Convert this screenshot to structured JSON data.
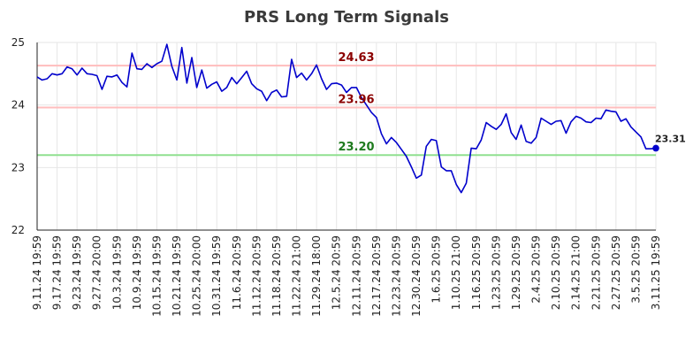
{
  "chart_data": {
    "type": "line",
    "title": "PRS Long Term Signals",
    "xlabel": "",
    "ylabel": "",
    "ylim": [
      22,
      25
    ],
    "yticks": [
      "22",
      "23",
      "24",
      "25"
    ],
    "grid": true,
    "x_tick_labels": [
      "9.11.24 19:59",
      "9.17.24 19:59",
      "9.23.24 19:59",
      "9.27.24 20:00",
      "10.3.24 19:59",
      "10.9.24 19:59",
      "10.15.24 19:59",
      "10.21.24 19:59",
      "10.25.24 20:00",
      "10.31.24 19:59",
      "11.6.24 20:59",
      "11.12.24 20:59",
      "11.18.24 20:59",
      "11.22.24 21:00",
      "11.29.24 18:00",
      "12.5.24 20:59",
      "12.11.24 20:59",
      "12.17.24 20:59",
      "12.23.24 20:59",
      "12.30.24 20:59",
      "1.6.25 20:59",
      "1.10.25 21:00",
      "1.16.25 20:59",
      "1.23.25 20:59",
      "1.29.25 20:59",
      "2.4.25 20:59",
      "2.10.25 20:59",
      "2.14.25 21:00",
      "2.21.25 20:59",
      "2.27.25 20:59",
      "3.5.25 20:59",
      "3.11.25 19:59"
    ],
    "reference_lines": [
      {
        "label": "24.63",
        "value": 24.63,
        "color": "#8b0000",
        "line_color": "#ffbdbd"
      },
      {
        "label": "23.96",
        "value": 23.96,
        "color": "#8b0000",
        "line_color": "#ffbdbd"
      },
      {
        "label": "23.20",
        "value": 23.2,
        "color": "#1e7a1e",
        "line_color": "#90e090"
      }
    ],
    "last_label": "23.31",
    "series": [
      {
        "color": "#0000cc",
        "values": [
          24.45,
          24.4,
          24.42,
          24.5,
          24.48,
          24.5,
          24.61,
          24.58,
          24.48,
          24.59,
          24.5,
          24.49,
          24.47,
          24.25,
          24.46,
          24.45,
          24.48,
          24.36,
          24.29,
          24.83,
          24.58,
          24.57,
          24.66,
          24.6,
          24.66,
          24.7,
          24.97,
          24.62,
          24.4,
          24.92,
          24.35,
          24.76,
          24.28,
          24.56,
          24.27,
          24.33,
          24.37,
          24.22,
          24.28,
          24.44,
          24.34,
          24.44,
          24.54,
          24.34,
          24.26,
          24.22,
          24.07,
          24.2,
          24.24,
          24.13,
          24.14,
          24.73,
          24.44,
          24.51,
          24.4,
          24.5,
          24.64,
          24.42,
          24.25,
          24.34,
          24.35,
          24.32,
          24.2,
          24.28,
          24.28,
          24.12,
          24.0,
          23.88,
          23.8,
          23.54,
          23.38,
          23.48,
          23.4,
          23.29,
          23.18,
          23.01,
          22.83,
          22.88,
          23.34,
          23.45,
          23.43,
          23.01,
          22.95,
          22.95,
          22.73,
          22.6,
          22.75,
          23.31,
          23.3,
          23.44,
          23.72,
          23.66,
          23.61,
          23.69,
          23.86,
          23.56,
          23.45,
          23.68,
          23.42,
          23.39,
          23.48,
          23.79,
          23.74,
          23.69,
          23.74,
          23.75,
          23.55,
          23.73,
          23.82,
          23.79,
          23.73,
          23.72,
          23.79,
          23.78,
          23.92,
          23.9,
          23.89,
          23.74,
          23.78,
          23.65,
          23.57,
          23.49,
          23.3,
          23.3,
          23.31
        ]
      }
    ]
  }
}
